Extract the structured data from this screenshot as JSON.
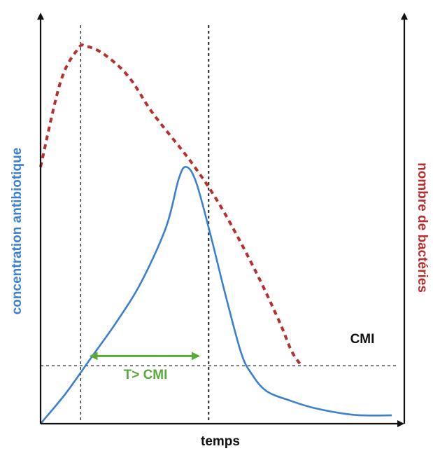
{
  "chart_data": {
    "type": "line",
    "title": "",
    "xlabel": "temps",
    "ylabel_left": "concentration antibiotique",
    "ylabel_right": "nombre de bactéries",
    "threshold_label": "CMI",
    "interval_label": "T> CMI",
    "grid": false,
    "colors": {
      "concentration": "#3d7fcf",
      "bacteria": "#b5302e",
      "interval": "#5aaa3a",
      "axis": "#111111",
      "reference": "#222222"
    },
    "series": [
      {
        "key": "concentration",
        "color": "#3d7fcf",
        "points": [
          [
            0,
            0
          ],
          [
            10,
            1.2
          ],
          [
            20,
            2.6
          ],
          [
            30,
            4.0
          ],
          [
            40,
            5.6
          ],
          [
            50,
            7.8
          ],
          [
            55,
            9.7
          ],
          [
            58,
            10.2
          ],
          [
            62,
            9.6
          ],
          [
            68,
            7.4
          ],
          [
            74,
            5.0
          ],
          [
            80,
            2.8
          ],
          [
            84,
            2.0
          ],
          [
            90,
            1.3
          ],
          [
            100,
            0.9
          ],
          [
            110,
            0.6
          ],
          [
            125,
            0.35
          ],
          [
            140,
            0.33
          ]
        ]
      },
      {
        "key": "bacteria",
        "color": "#b5302e",
        "points": [
          [
            0,
            10.2
          ],
          [
            8,
            13.6
          ],
          [
            15,
            14.9
          ],
          [
            18,
            15.0
          ],
          [
            25,
            14.7
          ],
          [
            35,
            13.8
          ],
          [
            45,
            12.3
          ],
          [
            60,
            10.4
          ],
          [
            72,
            8.6
          ],
          [
            85,
            6.2
          ],
          [
            95,
            4.1
          ],
          [
            100,
            2.9
          ],
          [
            104,
            2.3
          ]
        ]
      }
    ],
    "threshold": 2.3,
    "reference_times": [
      16,
      67
    ],
    "interval": [
      20,
      63
    ],
    "xlim": [
      0,
      145
    ],
    "ylim": [
      0,
      16
    ]
  }
}
